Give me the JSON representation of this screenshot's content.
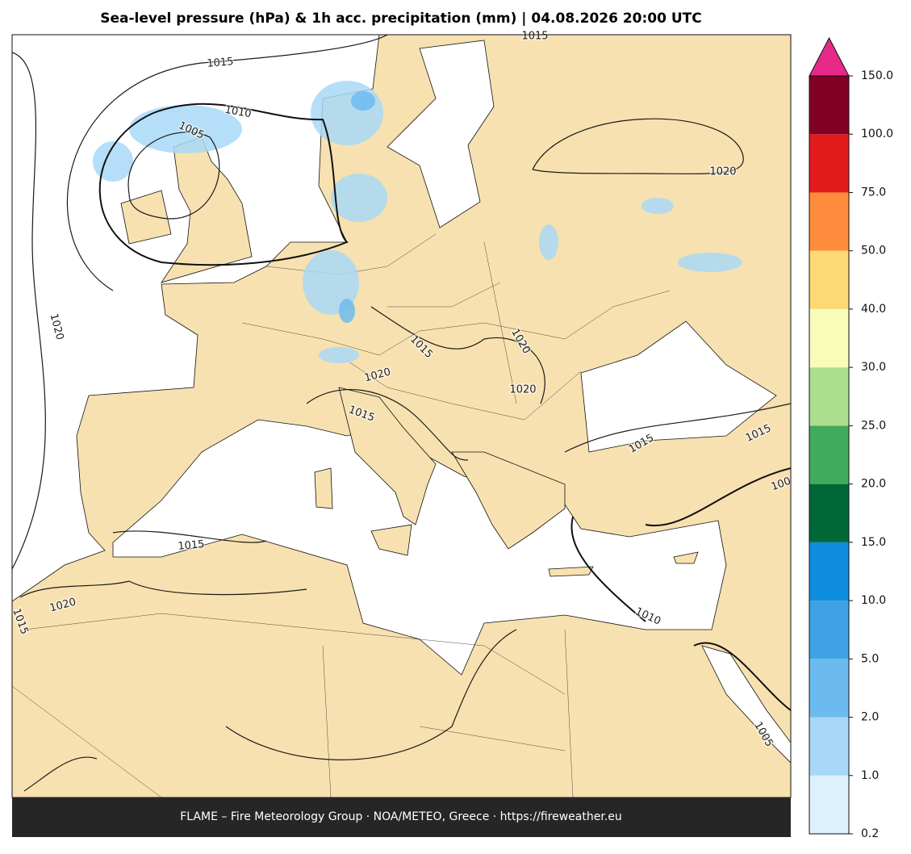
{
  "title": "Sea-level pressure (hPa) & 1h acc. precipitation (mm)  |  04.08.2026 20:00 UTC",
  "footer": "FLAME – Fire Meteorology Group · NOA/METEO, Greece · https://fireweather.eu",
  "contour_labels": [
    "1015",
    "1015",
    "1010",
    "1005",
    "1020",
    "1020",
    "1015",
    "1020",
    "1020",
    "1020",
    "1015",
    "1015",
    "1015",
    "100",
    "1015",
    "1020",
    "1015",
    "1010",
    "1005"
  ],
  "colorbar": {
    "ticks": [
      0.2,
      {
        "value": 1,
        "label": "1.0"
      },
      {
        "value": 2,
        "label": "2.0"
      },
      {
        "value": 5,
        "label": "5.0"
      },
      {
        "value": 10,
        "label": "10.0"
      },
      {
        "value": 15,
        "label": "15.0"
      },
      {
        "value": 20,
        "label": "20.0"
      },
      {
        "value": 25,
        "label": "25.0"
      },
      {
        "value": 30,
        "label": "30.0"
      },
      {
        "value": 40,
        "label": "40.0"
      },
      {
        "value": 50,
        "label": "50.0"
      },
      {
        "value": 75,
        "label": "75.0"
      },
      {
        "value": 100,
        "label": "100.0"
      },
      {
        "value": 150,
        "label": "150.0"
      }
    ],
    "colors": [
      "#ddf1fc",
      "#a8d8f7",
      "#6cbbf0",
      "#3fa2e5",
      "#0f8ddf",
      "#006837",
      "#41ab5d",
      "#addd8e",
      "#f7fcb9",
      "#fed976",
      "#fd8d3c",
      "#e31a1c",
      "#800026"
    ],
    "extend_color": "#e7298a"
  }
}
